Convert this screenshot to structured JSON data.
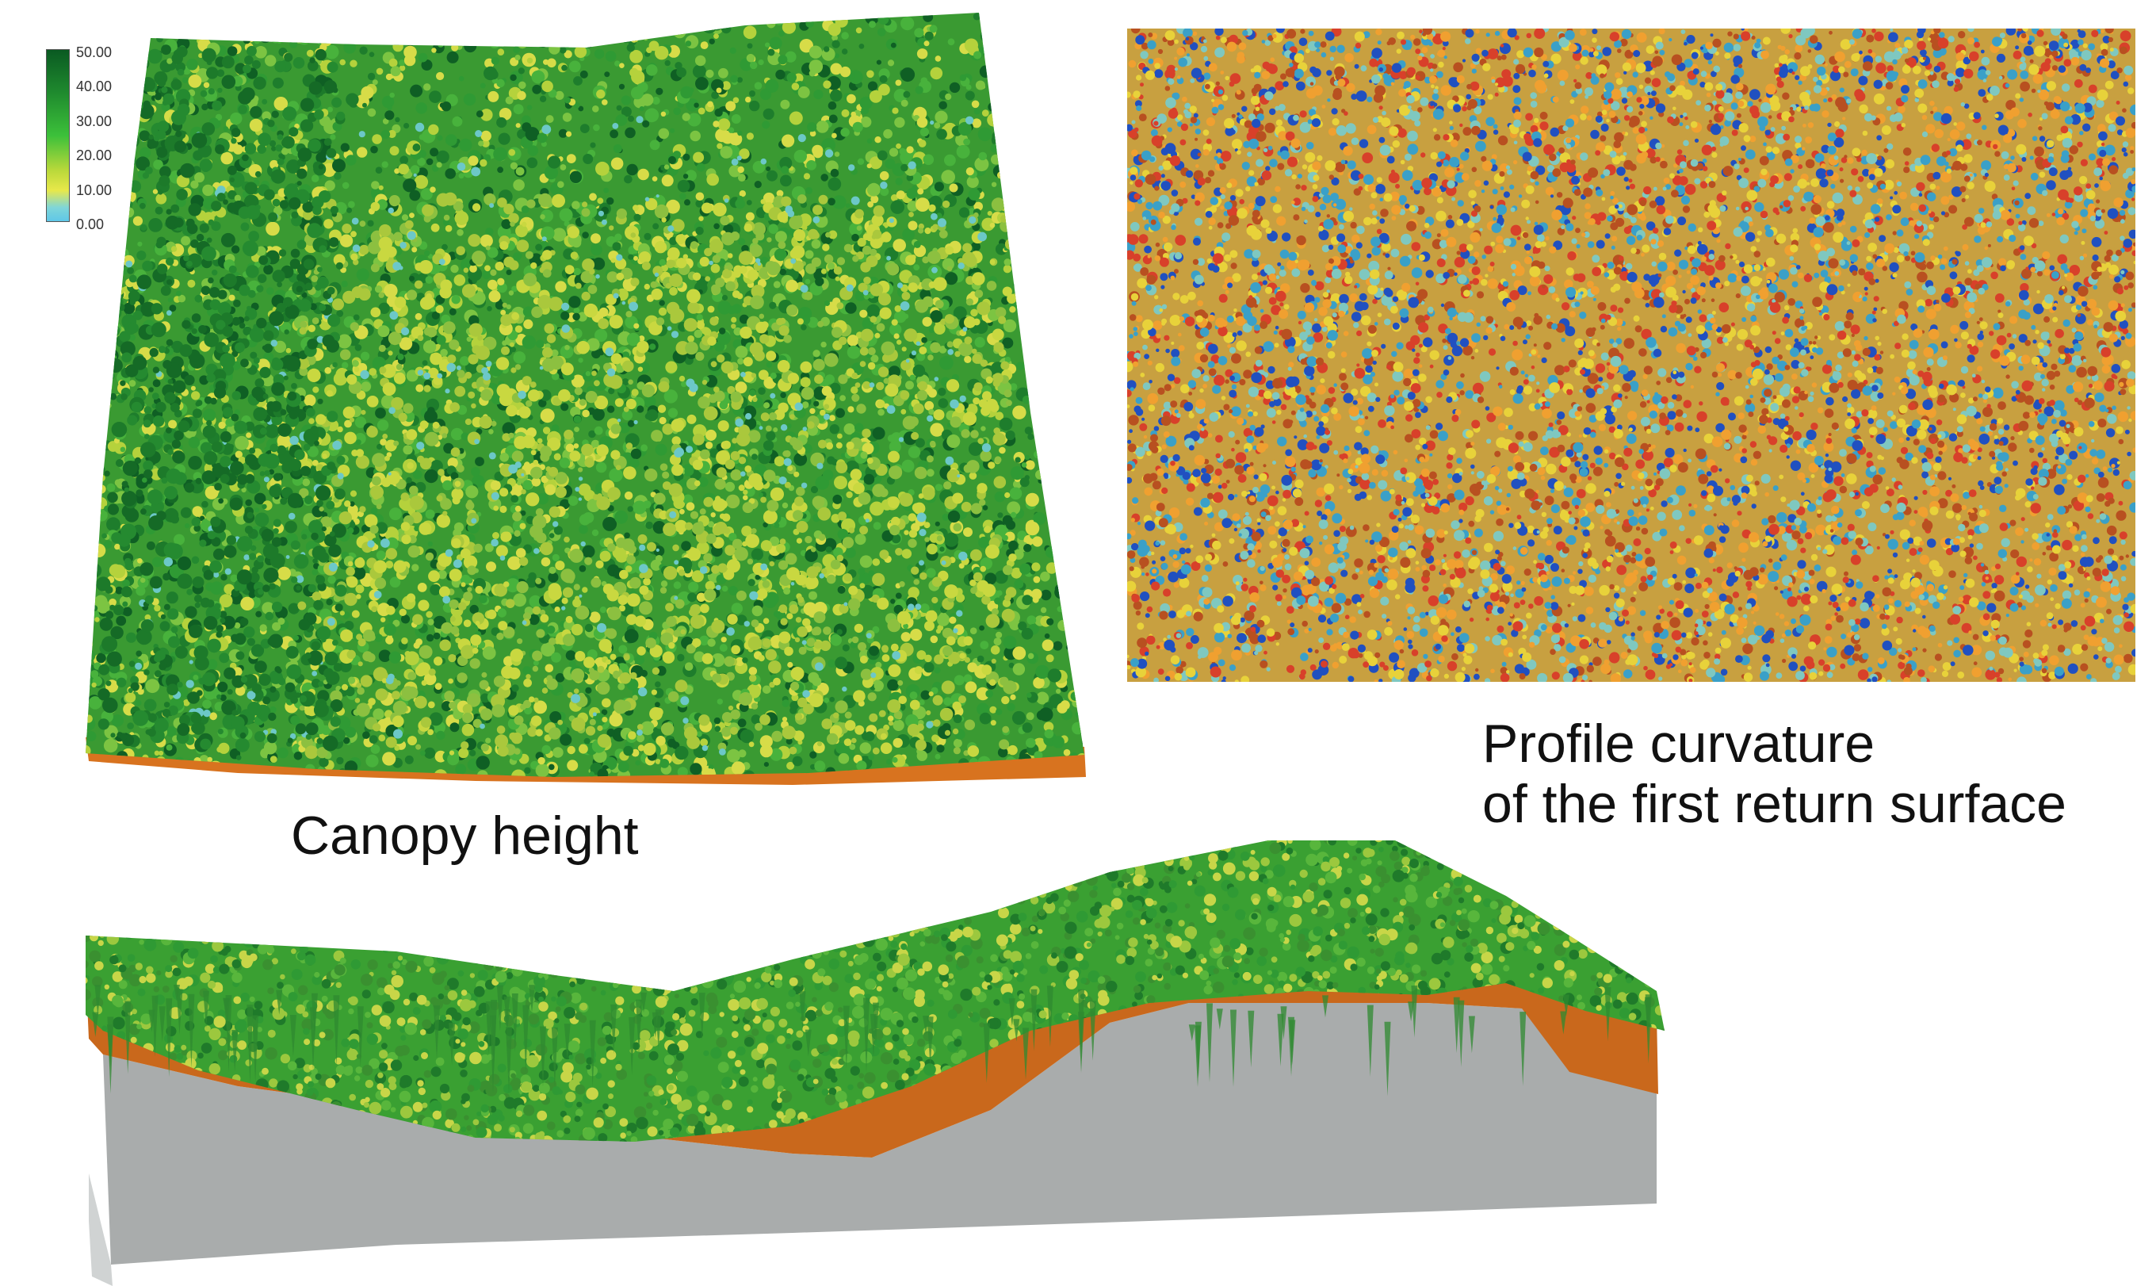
{
  "captions": {
    "canopy": "Canopy height",
    "curvature_line1": "Profile curvature",
    "curvature_line2": "of the first return surface"
  },
  "legend": {
    "ticks": [
      "50.00",
      "40.00",
      "30.00",
      "20.00",
      "10.00",
      "0.00"
    ],
    "colors": [
      "#0a5a22",
      "#1f8a2e",
      "#3cc03a",
      "#b8d83a",
      "#e8e84a",
      "#5fc7e8"
    ]
  },
  "palette": {
    "canopy_greens": [
      "#0f5f24",
      "#1e7d2c",
      "#2f9a34",
      "#48b23c",
      "#7cc442",
      "#b5d23c",
      "#d7dc48"
    ],
    "gap_cyan": "#6cc8c8",
    "soil_orange": "#d06a1e",
    "bedrock_gray": "#a8abab",
    "curvature": [
      "#f0a030",
      "#e8d23a",
      "#d8402a",
      "#3aa0c8",
      "#2050c0",
      "#7fc8c0",
      "#b85020"
    ]
  }
}
